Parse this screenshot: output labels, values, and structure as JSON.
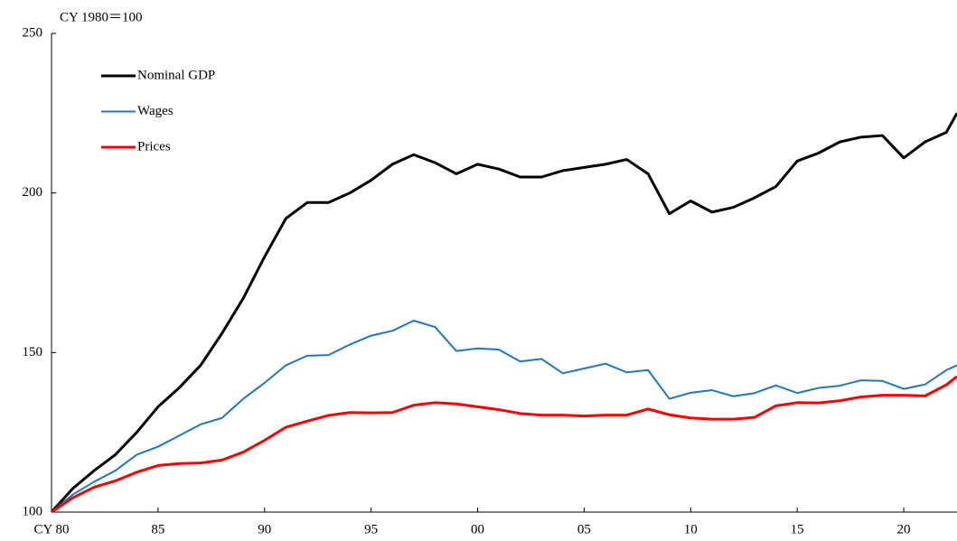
{
  "chart_data": {
    "type": "line",
    "y_unit_label": "CY 1980＝100",
    "x": [
      1980,
      1981,
      1982,
      1983,
      1984,
      1985,
      1986,
      1987,
      1988,
      1989,
      1990,
      1991,
      1992,
      1993,
      1994,
      1995,
      1996,
      1997,
      1998,
      1999,
      2000,
      2001,
      2002,
      2003,
      2004,
      2005,
      2006,
      2007,
      2008,
      2009,
      2010,
      2011,
      2012,
      2013,
      2014,
      2015,
      2016,
      2017,
      2018,
      2019,
      2020,
      2021,
      2022,
      2022.5
    ],
    "series": [
      {
        "name": "Nominal GDP",
        "color": "#000000",
        "values": [
          100,
          107.4,
          113,
          118,
          125,
          133,
          139,
          146,
          156,
          167,
          180,
          192,
          197,
          197,
          200,
          204,
          209,
          212,
          209.5,
          206,
          209,
          207.5,
          205,
          205,
          207,
          208,
          209,
          210.5,
          206,
          193.5,
          197.5,
          194,
          195.5,
          198.5,
          202,
          210,
          212.5,
          216,
          217.5,
          218,
          211,
          216,
          219,
          225
        ]
      },
      {
        "name": "Wages",
        "color": "#1f77c4",
        "values": [
          100,
          105.5,
          109.5,
          113,
          118,
          120.5,
          124,
          127.5,
          129.5,
          135.5,
          140.5,
          146,
          149,
          149.2,
          152.5,
          155.3,
          156.8,
          160,
          158,
          150.5,
          151.3,
          150.9,
          147.2,
          148,
          143.5,
          145,
          146.5,
          143.8,
          144.5,
          135.5,
          137.4,
          138.2,
          136.3,
          137.3,
          139.7,
          137.3,
          138.9,
          139.6,
          141.3,
          141.1,
          138.6,
          140,
          144.5,
          146
        ]
      },
      {
        "name": "Prices",
        "color": "#ff0000",
        "values": [
          100,
          104.5,
          107.8,
          109.8,
          112.5,
          114.6,
          115.2,
          115.4,
          116.3,
          118.8,
          122.5,
          126.6,
          128.5,
          130.3,
          131.2,
          131.1,
          131.2,
          133.5,
          134.3,
          133.9,
          133,
          132.1,
          130.9,
          130.4,
          130.4,
          130.1,
          130.4,
          130.4,
          132.3,
          130.5,
          129.5,
          129.1,
          129.1,
          129.7,
          133.3,
          134.3,
          134.2,
          134.9,
          136.1,
          136.6,
          136.6,
          136.4,
          139.9,
          142.5
        ]
      }
    ],
    "xlim": [
      1980,
      2022.5
    ],
    "xticks": [
      {
        "value": 1980,
        "label": "CY 80"
      },
      {
        "value": 1985,
        "label": "85"
      },
      {
        "value": 1990,
        "label": "90"
      },
      {
        "value": 1995,
        "label": "95"
      },
      {
        "value": 2000,
        "label": "00"
      },
      {
        "value": 2005,
        "label": "05"
      },
      {
        "value": 2010,
        "label": "10"
      },
      {
        "value": 2015,
        "label": "15"
      },
      {
        "value": 2020,
        "label": "20"
      }
    ],
    "ylim": [
      100,
      250
    ],
    "yticks": [
      100,
      150,
      200,
      250
    ],
    "grid": false,
    "legend": "upper left"
  }
}
